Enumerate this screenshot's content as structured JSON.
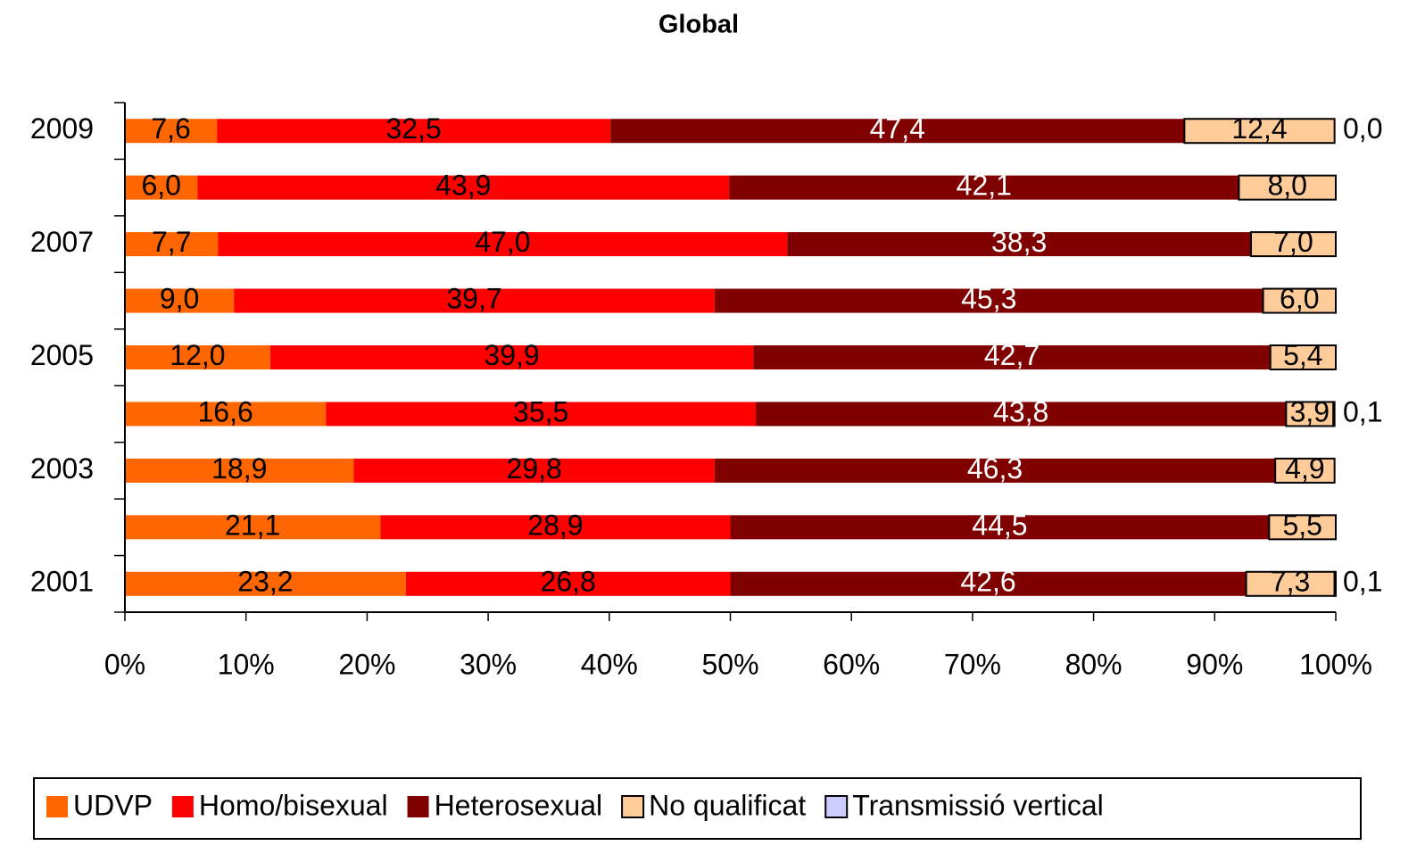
{
  "chart_data": {
    "type": "stacked-barh",
    "title": "Global",
    "categories": [
      "2001",
      null,
      "2003",
      null,
      "2005",
      null,
      "2007",
      null,
      "2009"
    ],
    "series": [
      {
        "name": "UDVP",
        "color": "#ff6600",
        "values": [
          23.2,
          21.1,
          18.9,
          16.6,
          12.0,
          9.0,
          7.7,
          6.0,
          7.6
        ],
        "value_labels": [
          "23,2",
          "21,1",
          "18,9",
          "16,6",
          "12,0",
          "9,0",
          "7,7",
          "6,0",
          "7,6"
        ]
      },
      {
        "name": "Homo/bisexual",
        "color": "#ff0000",
        "values": [
          26.8,
          28.9,
          29.8,
          35.5,
          39.9,
          39.7,
          47.0,
          43.9,
          32.5
        ],
        "value_labels": [
          "26,8",
          "28,9",
          "29,8",
          "35,5",
          "39,9",
          "39,7",
          "47,0",
          "43,9",
          "32,5"
        ]
      },
      {
        "name": "Heterosexual",
        "color": "#800000",
        "values": [
          42.6,
          44.5,
          46.3,
          43.8,
          42.7,
          45.3,
          38.3,
          42.1,
          47.4
        ],
        "value_labels": [
          "42,6",
          "44,5",
          "46,3",
          "43,8",
          "42,7",
          "45,3",
          "38,3",
          "42,1",
          "47,4"
        ]
      },
      {
        "name": "No qualificat",
        "color": "#ffcc99",
        "values": [
          7.3,
          5.5,
          4.9,
          3.9,
          5.4,
          6.0,
          7.0,
          8.0,
          12.4
        ],
        "value_labels": [
          "7,3",
          "5,5",
          "4,9",
          "3,9",
          "5,4",
          "6,0",
          "7,0",
          "8,0",
          "12,4"
        ]
      },
      {
        "name": "Transmissió vertical",
        "color": "#ccccff",
        "values": [
          0.1,
          0,
          0,
          0.1,
          0,
          0,
          0,
          0,
          0.0
        ],
        "value_labels": [
          "0,1",
          null,
          null,
          "0,1",
          null,
          null,
          null,
          null,
          "0,0"
        ]
      }
    ],
    "xlim": [
      0,
      100
    ],
    "xticks": [
      {
        "value": 0,
        "label": "0%"
      },
      {
        "value": 10,
        "label": "10%"
      },
      {
        "value": 20,
        "label": "20%"
      },
      {
        "value": 30,
        "label": "30%"
      },
      {
        "value": 40,
        "label": "40%"
      },
      {
        "value": 50,
        "label": "50%"
      },
      {
        "value": 60,
        "label": "60%"
      },
      {
        "value": 70,
        "label": "70%"
      },
      {
        "value": 80,
        "label": "80%"
      },
      {
        "value": 90,
        "label": "90%"
      },
      {
        "value": 100,
        "label": "100%"
      }
    ]
  }
}
